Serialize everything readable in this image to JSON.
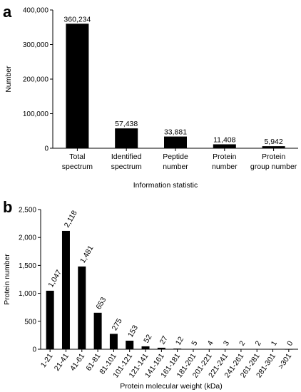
{
  "chart_data": [
    {
      "panel": "a",
      "type": "bar",
      "categories": [
        [
          "Total",
          "spectrum"
        ],
        [
          "Identified",
          "spectrum"
        ],
        [
          "Peptide",
          "number"
        ],
        [
          "Protein",
          "number"
        ],
        [
          "Protein",
          "group number"
        ]
      ],
      "values": [
        360234,
        57438,
        33881,
        11408,
        5942
      ],
      "value_labels": [
        "360,234",
        "57,438",
        "33,881",
        "11,408",
        "5,942"
      ],
      "xlabel": "Information statistic",
      "ylabel": "Number",
      "ylim": [
        0,
        400000
      ],
      "yticks": [
        "0",
        "100,000",
        "200,000",
        "300,000",
        "400,000"
      ],
      "bar_color": "#000000"
    },
    {
      "panel": "b",
      "type": "bar",
      "categories": [
        "1-21",
        "21-41",
        "41-61",
        "61-81",
        "81-101",
        "101-121",
        "121-141",
        "141-161",
        "161-181",
        "181-201",
        "201-221",
        "221-241",
        "241-261",
        "261-281",
        "281-301",
        ">301"
      ],
      "values": [
        1047,
        2118,
        1481,
        653,
        275,
        153,
        52,
        27,
        12,
        5,
        4,
        3,
        2,
        2,
        1,
        0
      ],
      "value_labels": [
        "1,047",
        "2,118",
        "1,481",
        "653",
        "275",
        "153",
        "52",
        "27",
        "12",
        "5",
        "4",
        "3",
        "2",
        "2",
        "1",
        "0"
      ],
      "xlabel": "Protein molecular weight (kDa)",
      "ylabel": "Protein number",
      "ylim": [
        0,
        2500
      ],
      "yticks": [
        "0",
        "500",
        "1,000",
        "1,500",
        "2,000",
        "2,500"
      ],
      "bar_color": "#000000"
    }
  ]
}
